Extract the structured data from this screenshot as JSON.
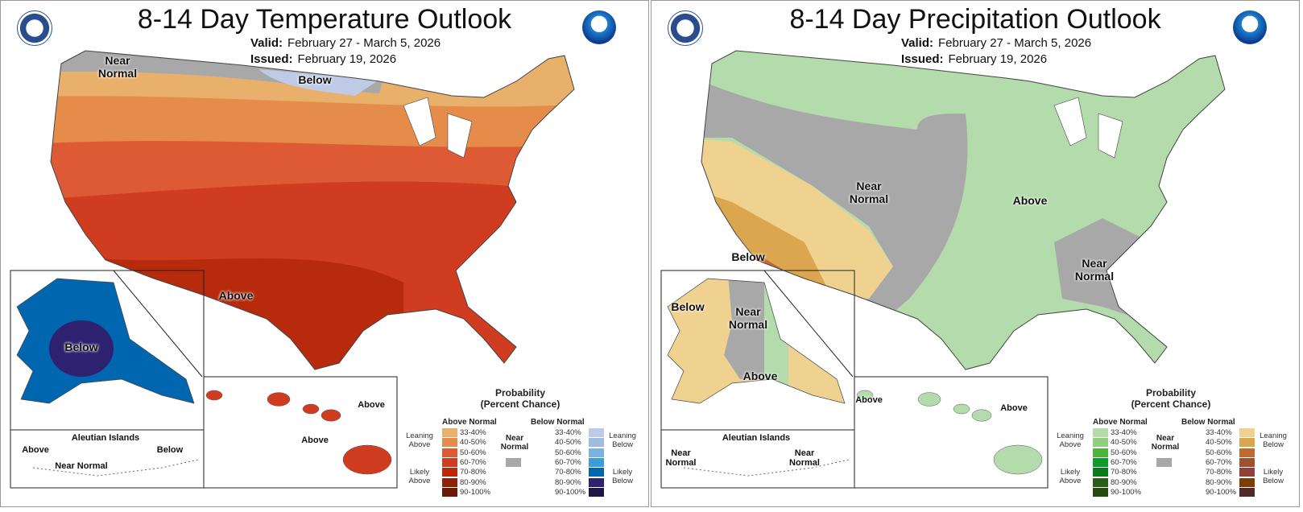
{
  "panels": [
    {
      "title": "8-14 Day Temperature Outlook",
      "valid_label": "Valid:",
      "valid": "February 27 - March 5, 2026",
      "issued_label": "Issued:",
      "issued": "February 19, 2026",
      "labels": {
        "near_normal": "Near Normal",
        "below": "Below",
        "above": "Above",
        "ak_below": "Below",
        "aleut_above": "Above",
        "aleut_below": "Below",
        "aleut_near": "Near Normal",
        "aleutian": "Aleutian Islands",
        "hi_above1": "Above",
        "hi_above2": "Above"
      },
      "legend": {
        "above_colors": [
          "#e8b06a",
          "#e58c4a",
          "#dd5a34",
          "#cf3c20",
          "#b72a0c",
          "#8e2208",
          "#6b1a06"
        ],
        "below_colors": [
          "#bfcbe6",
          "#9ebde0",
          "#78b3e3",
          "#3a9ddf",
          "#0066b0",
          "#2d2170",
          "#1e1848"
        ]
      }
    },
    {
      "title": "8-14 Day Precipitation Outlook",
      "valid_label": "Valid:",
      "valid": "February 27 - March 5, 2026",
      "issued_label": "Issued:",
      "issued": "February 19, 2026",
      "labels": {
        "near_normal": "Near Normal",
        "above": "Above",
        "below": "Below",
        "se_near": "Near Normal",
        "ak_below": "Below",
        "ak_near": "Near Normal",
        "ak_above": "Above",
        "aleut_near1": "Near Normal",
        "aleut_near2": "Near Normal",
        "aleutian": "Aleutian Islands",
        "hi_above1": "Above",
        "hi_above2": "Above"
      },
      "legend": {
        "above_colors": [
          "#b3dbab",
          "#8fd07f",
          "#4cb43a",
          "#0e9a2a",
          "#0a7a1a",
          "#2b5e14",
          "#254a0e"
        ],
        "below_colors": [
          "#f0d290",
          "#dca64e",
          "#c06a30",
          "#a24e30",
          "#934038",
          "#7b3e06",
          "#502a2a"
        ]
      }
    }
  ],
  "legend": {
    "title1": "Probability",
    "title2": "(Percent Chance)",
    "above_normal": "Above Normal",
    "below_normal": "Below Normal",
    "near_normal": "Near Normal",
    "near_color": "#a8a8a8",
    "ranges": [
      "33-40%",
      "40-50%",
      "50-60%",
      "60-70%",
      "70-80%",
      "80-90%",
      "90-100%"
    ],
    "leaning_above": "Leaning Above",
    "likely_above": "Likely Above",
    "leaning_below": "Leaning Below",
    "likely_below": "Likely Below"
  },
  "logos": [
    "department-of-commerce-seal",
    "noaa-logo"
  ]
}
